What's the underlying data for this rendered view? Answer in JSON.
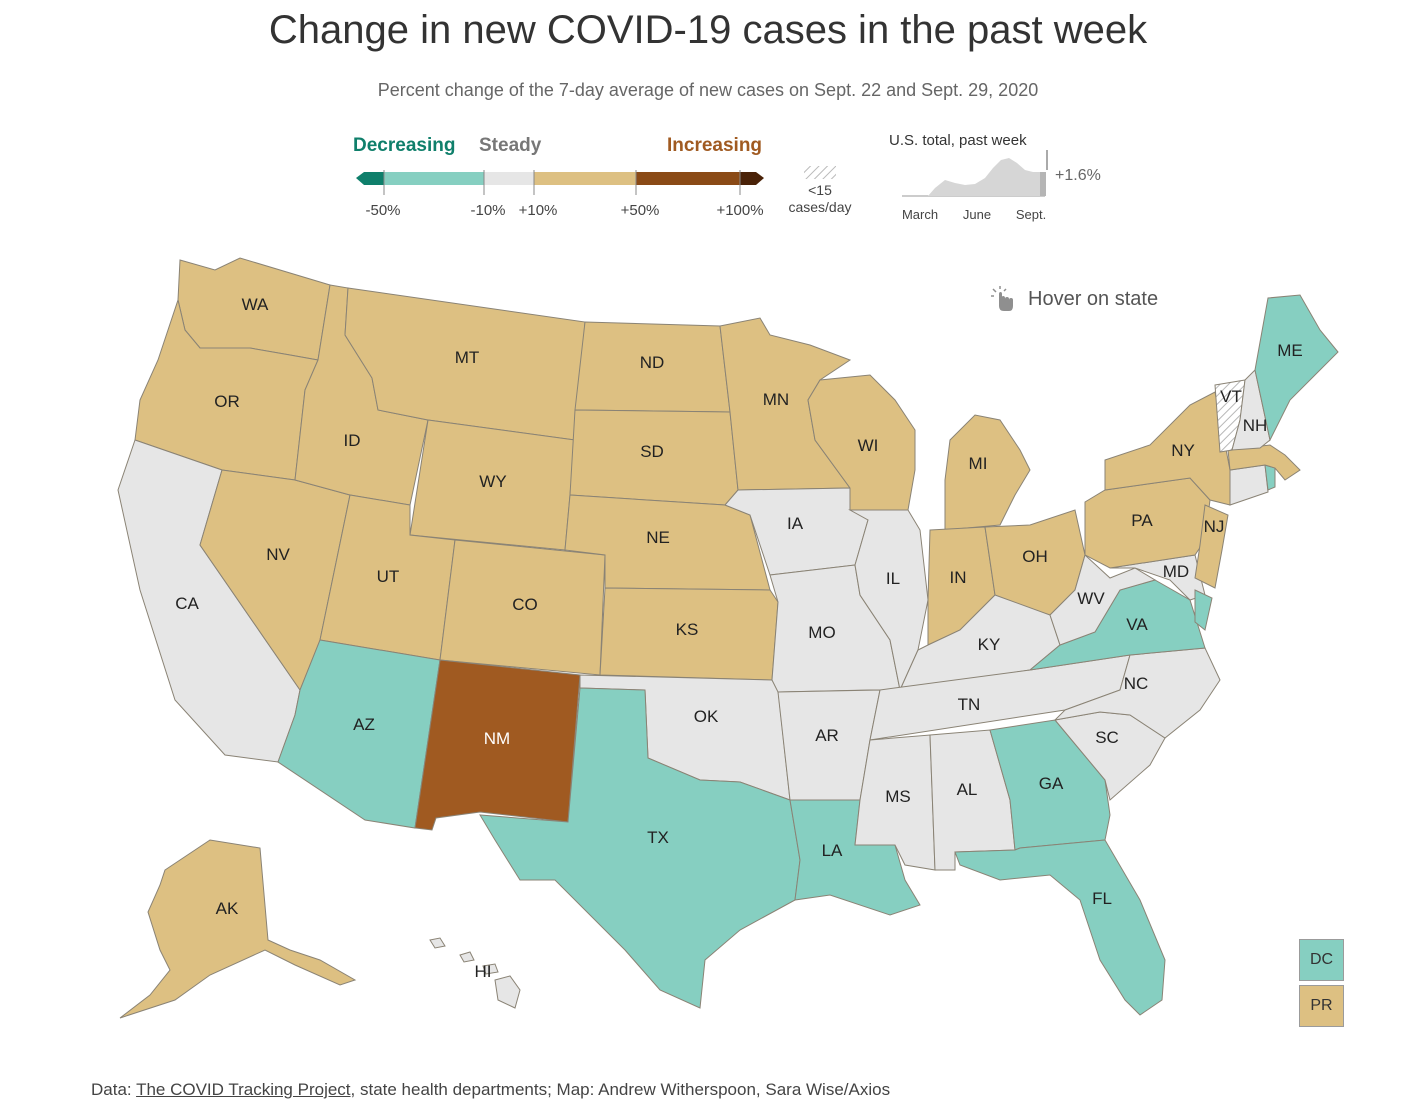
{
  "title": "Change in new COVID-19 cases in the past week",
  "subtitle": "Percent change of the 7-day average of new cases on Sept. 22 and Sept. 29, 2020",
  "legend": {
    "decreasing": "Decreasing",
    "steady": "Steady",
    "increasing": "Increasing",
    "ticks": [
      "-50%",
      "-10%",
      "+10%",
      "+50%",
      "+100%"
    ],
    "hatch_label_1": "<15",
    "hatch_label_2": "cases/day"
  },
  "sparkline": {
    "title": "U.S. total, past week",
    "months": [
      "March",
      "June",
      "Sept."
    ],
    "value": "+1.6%"
  },
  "hover_hint": "Hover on state",
  "colors": {
    "decreasing_dark": "#0f7f6b",
    "decreasing": "#86cfc1",
    "steady": "#e6e6e6",
    "increasing": "#ddc082",
    "increasing_strong": "#a05a21",
    "increasing_max": "#5a2d0c",
    "no_data": "#ffffff"
  },
  "states": {
    "WA": "increasing",
    "OR": "increasing",
    "CA": "steady",
    "NV": "increasing",
    "ID": "increasing",
    "MT": "increasing",
    "WY": "increasing",
    "UT": "increasing",
    "AZ": "decreasing",
    "CO": "increasing",
    "NM": "increasing_strong",
    "ND": "increasing",
    "SD": "increasing",
    "NE": "increasing",
    "KS": "increasing",
    "OK": "steady",
    "TX": "decreasing",
    "MN": "increasing",
    "IA": "steady",
    "MO": "steady",
    "AR": "steady",
    "LA": "decreasing",
    "WI": "increasing",
    "IL": "steady",
    "MI": "increasing",
    "IN": "increasing",
    "OH": "increasing",
    "KY": "steady",
    "TN": "steady",
    "MS": "steady",
    "AL": "steady",
    "GA": "decreasing",
    "FL": "decreasing",
    "SC": "steady",
    "NC": "steady",
    "VA": "decreasing",
    "WV": "steady",
    "MD": "steady",
    "DE": "decreasing",
    "NJ": "increasing",
    "PA": "increasing",
    "NY": "increasing",
    "CT": "steady",
    "RI": "decreasing",
    "MA": "increasing",
    "VT": "no_data",
    "NH": "steady",
    "ME": "decreasing",
    "AK": "increasing",
    "HI": "steady",
    "DC": "decreasing",
    "PR": "increasing"
  },
  "boxes": {
    "dc": "DC",
    "pr": "PR"
  },
  "footer": {
    "prefix": "Data: ",
    "link": "The COVID Tracking Project",
    "suffix": ", state health departments; Map: Andrew Witherspoon, Sara Wise/Axios"
  }
}
